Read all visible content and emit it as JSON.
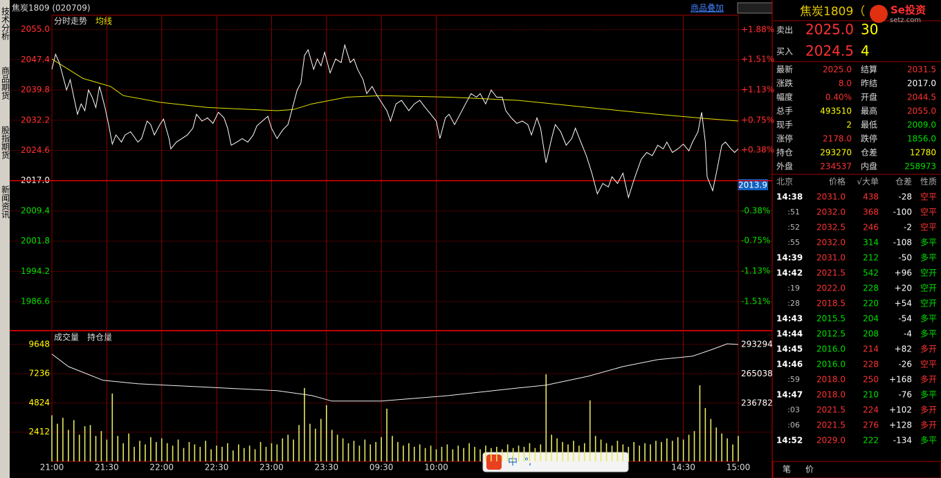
{
  "header": {
    "symbol": "焦炭1809 (020709)",
    "overlay_button": "商品叠加"
  },
  "sidebar_tabs": [
    "技术分析",
    "商品期货",
    "股指期货",
    "新闻资讯"
  ],
  "price_chart": {
    "labels": [
      "分时走势",
      "均线"
    ],
    "xlim": [
      0,
      375
    ],
    "ylim": [
      1979.3,
      2058.6
    ],
    "reference": 2017.0,
    "yticks": [
      {
        "value": 2055.0,
        "label": "2055.0"
      },
      {
        "value": 2047.4,
        "label": "2047.4"
      },
      {
        "value": 2039.8,
        "label": "2039.8"
      },
      {
        "value": 2032.2,
        "label": "2032.2"
      },
      {
        "value": 2024.6,
        "label": "2024.6"
      },
      {
        "value": 2017.0,
        "label": "2017.0"
      },
      {
        "value": 2009.4,
        "label": "2009.4"
      },
      {
        "value": 2001.8,
        "label": "2001.8"
      },
      {
        "value": 1994.2,
        "label": "1994.2"
      },
      {
        "value": 1986.6,
        "label": "1986.6"
      }
    ],
    "y2lim": [
      -1.87,
      2.06
    ],
    "y2ticks": [
      {
        "value": 1.88,
        "label": "+1.88%"
      },
      {
        "value": 1.51,
        "label": "+1.51%"
      },
      {
        "value": 1.13,
        "label": "+1.13%"
      },
      {
        "value": 0.75,
        "label": "+0.75%"
      },
      {
        "value": 0.38,
        "label": "+0.38%"
      },
      {
        "value": -0.38,
        "label": "-0.38%"
      },
      {
        "value": -0.75,
        "label": "-0.75%"
      },
      {
        "value": -1.13,
        "label": "-1.13%"
      },
      {
        "value": -1.51,
        "label": "-1.51%"
      }
    ],
    "xticks": [
      {
        "value": 0,
        "label": "21:00"
      },
      {
        "value": 30,
        "label": "21:30"
      },
      {
        "value": 60,
        "label": "22:00"
      },
      {
        "value": 90,
        "label": "22:30"
      },
      {
        "value": 120,
        "label": "23:00"
      },
      {
        "value": 150,
        "label": "23:30"
      },
      {
        "value": 180,
        "label": "09:30"
      },
      {
        "value": 210,
        "label": "10:00"
      },
      {
        "value": 345,
        "label": "14:30"
      },
      {
        "value": 375,
        "label": "15:00"
      }
    ],
    "cursor_label": "2013.9",
    "price": {
      "color": "#ffffff",
      "x": [
        0,
        2,
        4,
        6,
        8,
        10,
        12,
        14,
        16,
        18,
        20,
        22,
        24,
        26,
        28,
        29,
        31,
        33,
        35,
        38,
        40,
        43,
        47,
        49,
        52,
        54,
        56,
        59,
        61,
        64,
        65,
        68,
        71,
        74,
        77,
        79,
        82,
        85,
        88,
        91,
        94,
        96,
        98,
        101,
        104,
        107,
        110,
        112,
        115,
        118,
        120,
        123,
        126,
        129,
        130,
        132,
        134,
        136,
        138,
        140,
        143,
        145,
        147,
        149,
        152,
        155,
        158,
        160,
        163,
        165,
        167,
        170,
        172,
        175,
        177,
        180,
        183,
        185,
        188,
        191,
        195,
        198,
        201,
        204,
        207,
        210,
        212,
        215,
        217,
        220,
        223,
        226,
        229,
        232,
        234,
        237,
        240,
        243,
        246,
        248,
        251,
        254,
        257,
        260,
        262,
        265,
        267,
        270,
        273,
        275,
        278,
        281,
        284,
        286,
        289,
        292,
        295,
        298,
        301,
        304,
        306,
        309,
        312,
        315,
        318,
        320,
        322,
        325,
        328,
        331,
        334,
        336,
        339,
        342,
        345,
        348,
        350,
        353,
        355,
        357,
        358,
        361,
        363,
        366,
        368,
        371,
        373,
        375
      ],
      "values": [
        2045.0,
        2048.8,
        2046.7,
        2043.3,
        2039.8,
        2042.4,
        2038.0,
        2033.7,
        2036.3,
        2034.6,
        2039.8,
        2038.0,
        2035.4,
        2040.7,
        2037.2,
        2035.4,
        2031.1,
        2026.2,
        2028.5,
        2026.7,
        2028.5,
        2029.3,
        2026.7,
        2027.6,
        2032.0,
        2031.1,
        2028.5,
        2031.1,
        2032.5,
        2027.6,
        2025.0,
        2026.7,
        2027.6,
        2028.5,
        2030.2,
        2033.7,
        2032.0,
        2032.8,
        2031.4,
        2034.2,
        2032.8,
        2030.2,
        2025.9,
        2026.7,
        2027.6,
        2026.7,
        2028.5,
        2030.8,
        2032.0,
        2033.2,
        2030.2,
        2027.6,
        2029.7,
        2031.1,
        2032.8,
        2036.3,
        2039.8,
        2041.5,
        2048.5,
        2049.9,
        2045.0,
        2047.6,
        2045.9,
        2049.3,
        2044.1,
        2047.6,
        2046.7,
        2051.1,
        2046.7,
        2047.6,
        2045.0,
        2042.4,
        2038.9,
        2040.7,
        2038.9,
        2036.7,
        2034.6,
        2032.0,
        2036.3,
        2037.2,
        2034.6,
        2036.3,
        2037.2,
        2035.4,
        2033.7,
        2032.0,
        2027.6,
        2032.8,
        2033.7,
        2031.1,
        2033.7,
        2036.3,
        2038.9,
        2038.0,
        2038.9,
        2036.3,
        2039.8,
        2038.0,
        2038.0,
        2034.6,
        2032.8,
        2031.4,
        2032.0,
        2031.1,
        2028.5,
        2032.8,
        2030.2,
        2021.5,
        2027.6,
        2031.1,
        2029.3,
        2025.9,
        2027.6,
        2030.2,
        2026.7,
        2023.3,
        2018.9,
        2013.7,
        2016.3,
        2015.4,
        2018.0,
        2016.3,
        2018.9,
        2012.8,
        2017.2,
        2019.8,
        2022.4,
        2024.1,
        2023.3,
        2025.9,
        2025.0,
        2026.7,
        2024.1,
        2025.0,
        2026.2,
        2024.5,
        2026.7,
        2029.3,
        2034.2,
        2026.7,
        2018.0,
        2014.5,
        2018.9,
        2025.9,
        2026.7,
        2025.0,
        2024.1,
        2025.0
      ]
    },
    "average": {
      "color": "#e6e600",
      "x": [
        0,
        9,
        17,
        32,
        39,
        59,
        85,
        123,
        132,
        142,
        161,
        180,
        218,
        255,
        293,
        331,
        353,
        375
      ],
      "values": [
        2047.6,
        2045.0,
        2042.7,
        2040.7,
        2038.4,
        2036.7,
        2035.4,
        2034.6,
        2034.9,
        2036.3,
        2038.0,
        2038.4,
        2038.0,
        2037.2,
        2035.4,
        2033.7,
        2032.8,
        2032.0
      ]
    }
  },
  "volume_chart": {
    "labels": [
      "成交量",
      "持仓量"
    ],
    "ylim": [
      0,
      10665
    ],
    "yticks": [
      9648,
      7236,
      4824,
      2412
    ],
    "y2lim": [
      181196,
      305205
    ],
    "y2ticks": [
      293294,
      265038,
      236782
    ],
    "volume": {
      "color": "#e8e860",
      "x": [
        0,
        3,
        6,
        9,
        12,
        15,
        18,
        21,
        24,
        27,
        30,
        33,
        36,
        39,
        42,
        45,
        48,
        51,
        54,
        57,
        60,
        63,
        66,
        69,
        72,
        75,
        78,
        81,
        84,
        87,
        90,
        93,
        96,
        99,
        102,
        105,
        108,
        111,
        114,
        117,
        120,
        123,
        126,
        129,
        132,
        135,
        138,
        141,
        144,
        147,
        150,
        153,
        156,
        159,
        162,
        165,
        168,
        171,
        174,
        177,
        180,
        183,
        186,
        189,
        192,
        195,
        198,
        201,
        204,
        207,
        210,
        213,
        216,
        219,
        222,
        225,
        228,
        231,
        234,
        237,
        240,
        243,
        246,
        249,
        252,
        255,
        258,
        261,
        264,
        267,
        270,
        273,
        276,
        279,
        282,
        285,
        288,
        291,
        294,
        297,
        300,
        303,
        306,
        309,
        312,
        315,
        318,
        321,
        324,
        327,
        330,
        333,
        336,
        339,
        342,
        345,
        348,
        351,
        354,
        357,
        360,
        363,
        366,
        369,
        372,
        375
      ],
      "values": [
        3800,
        3100,
        3600,
        2600,
        3400,
        2200,
        2900,
        3000,
        2100,
        2500,
        1800,
        5600,
        2100,
        1500,
        2300,
        1200,
        1700,
        1400,
        2000,
        1600,
        1900,
        1500,
        1300,
        1800,
        1100,
        1600,
        1400,
        1200,
        1700,
        1000,
        1300,
        1200,
        1500,
        900,
        1400,
        1100,
        1300,
        1000,
        1600,
        1200,
        1500,
        1400,
        1900,
        2200,
        1800,
        3000,
        6050,
        3100,
        2700,
        3500,
        4630,
        2600,
        2200,
        1900,
        1500,
        1700,
        1300,
        1800,
        1400,
        1600,
        2000,
        4350,
        2100,
        1600,
        1300,
        1500,
        1200,
        1400,
        1100,
        1300,
        1000,
        1200,
        1400,
        1000,
        1300,
        1100,
        1500,
        1200,
        1000,
        1300,
        1100,
        1200,
        1000,
        1400,
        1100,
        1300,
        1200,
        1500,
        1100,
        1400,
        7180,
        2200,
        1900,
        1600,
        1400,
        1700,
        1300,
        1500,
        5030,
        2100,
        1800,
        1500,
        1300,
        1700,
        1400,
        1200,
        1600,
        1300,
        1500,
        1400,
        1700,
        1600,
        1900,
        1700,
        2000,
        1800,
        2200,
        2500,
        6270,
        4400,
        3500,
        2800,
        2300,
        1900,
        1400,
        2100
      ]
    },
    "open_interest": {
      "color": "#f0f0f0",
      "x": [
        0,
        9,
        28,
        47,
        85,
        123,
        142,
        153,
        180,
        217,
        255,
        270,
        293,
        312,
        331,
        350,
        361,
        369,
        375
      ],
      "values": [
        284030,
        272120,
        258885,
        255577,
        252269,
        248960,
        244328,
        239035,
        239035,
        244328,
        251607,
        254254,
        262856,
        272120,
        278737,
        282045,
        288662,
        293956,
        293270
      ]
    }
  },
  "quote": {
    "title": "焦炭1809（",
    "logo": "Se投资",
    "logo_sub": "setz.com",
    "ask": [
      "卖出",
      "2025.0",
      "30"
    ],
    "bid": [
      "买入",
      "2024.5",
      "4"
    ],
    "stats": [
      [
        "最新",
        "2025.0",
        "结算",
        "2031.5"
      ],
      [
        "涨跌",
        "8.0",
        "昨结",
        "2017.0"
      ],
      [
        "幅度",
        "0.40%",
        "开盘",
        "2044.5"
      ],
      [
        "总手",
        "493510",
        "最高",
        "2055.0"
      ],
      [
        "现手",
        "2",
        "最低",
        "2009.0"
      ],
      [
        "涨停",
        "2178.0",
        "跌停",
        "1856.0"
      ],
      [
        "持仓",
        "293270",
        "仓差",
        "12780"
      ],
      [
        "外盘",
        "234537",
        "内盘",
        "258973"
      ]
    ]
  },
  "trades": {
    "headers": [
      "北京",
      "价格",
      "√大单",
      "仓差",
      "性质"
    ],
    "rows": [
      [
        "14:38",
        "2031.0",
        "438",
        "-28",
        "空平"
      ],
      [
        ":51",
        "2032.0",
        "368",
        "-100",
        "空平"
      ],
      [
        ":52",
        "2032.5",
        "246",
        "-2",
        "空平"
      ],
      [
        ":55",
        "2032.0",
        "314",
        "-108",
        "多平"
      ],
      [
        "14:39",
        "2031.0",
        "212",
        "-50",
        "多平"
      ],
      [
        "14:42",
        "2021.5",
        "542",
        "+96",
        "空开"
      ],
      [
        ":19",
        "2022.0",
        "228",
        "+20",
        "空开"
      ],
      [
        ":28",
        "2018.5",
        "220",
        "+54",
        "空开"
      ],
      [
        "14:43",
        "2015.5",
        "204",
        "-54",
        "多平"
      ],
      [
        "14:44",
        "2012.5",
        "208",
        "-4",
        "多平"
      ],
      [
        "14:45",
        "2016.0",
        "214",
        "+82",
        "多开"
      ],
      [
        "14:46",
        "2016.0",
        "228",
        "-26",
        "空平"
      ],
      [
        ":59",
        "2018.0",
        "250",
        "+168",
        "多开"
      ],
      [
        "14:47",
        "2018.0",
        "210",
        "-76",
        "多平"
      ],
      [
        ":03",
        "2021.5",
        "224",
        "+102",
        "多开"
      ],
      [
        ":06",
        "2021.5",
        "276",
        "+128",
        "多开"
      ],
      [
        "14:52",
        "2029.0",
        "222",
        "-134",
        "多平"
      ]
    ],
    "side_colors": [
      "#ff3232",
      "#ff3232",
      "#ff3232",
      "#00e000",
      "#00e000",
      "#00e000",
      "#00e000",
      "#00e000",
      "#00e000",
      "#00e000",
      "#ff3232",
      "#ff3232",
      "#ff3232",
      "#00e000",
      "#ff3232",
      "#ff3232",
      "#00e000"
    ]
  },
  "bottom_tabs": [
    "笔",
    "价"
  ],
  "ime": [
    "中",
    "°,"
  ]
}
